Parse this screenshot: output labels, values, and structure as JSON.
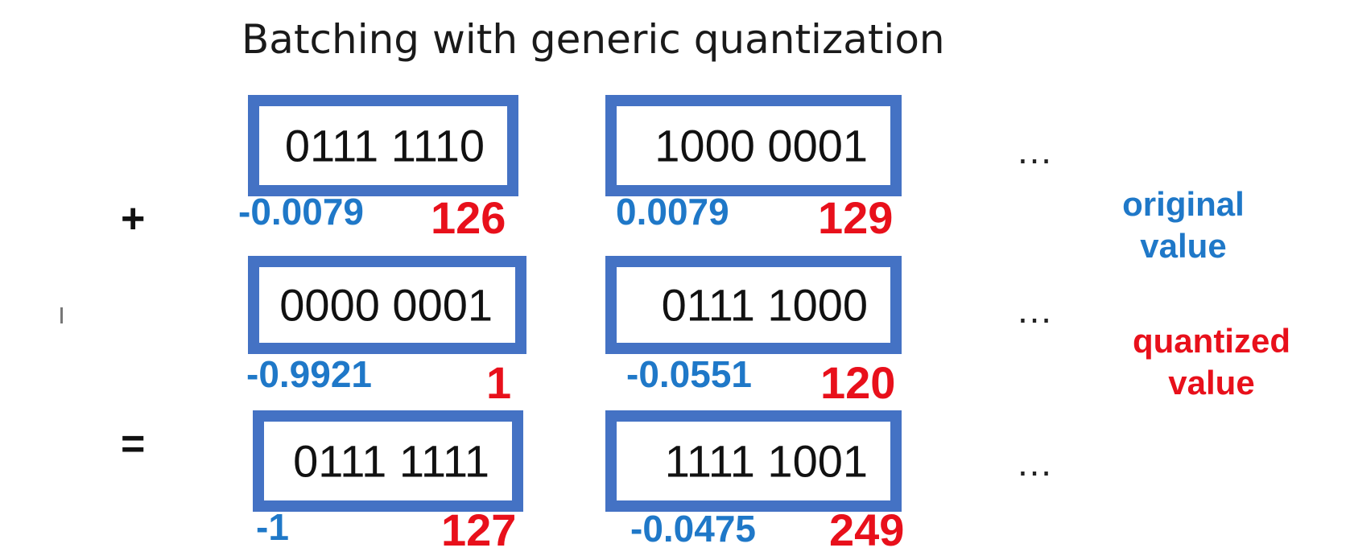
{
  "title": "Batching with generic quantization",
  "operators": {
    "plus": "+",
    "equals": "="
  },
  "ellipsis": "…",
  "rows": [
    {
      "cells": [
        {
          "bits": "0111 1110",
          "original": "-0.0079",
          "quantized": "126"
        },
        {
          "bits": "1000 0001",
          "original": "0.0079",
          "quantized": "129"
        }
      ]
    },
    {
      "cells": [
        {
          "bits": "0000 0001",
          "original": "-0.9921",
          "quantized": "1"
        },
        {
          "bits": "0111 1000",
          "original": "-0.0551",
          "quantized": "120"
        }
      ]
    },
    {
      "cells": [
        {
          "bits": "0111 1111",
          "original": "-1",
          "quantized": "127"
        },
        {
          "bits": "1111 1001",
          "original": "-0.0475",
          "quantized": "249"
        }
      ]
    }
  ],
  "legend": {
    "original_line1": "original",
    "original_line2": "value",
    "quantized_line1": "quantized",
    "quantized_line2": "value"
  },
  "colors": {
    "box_border": "#4472c4",
    "original_value": "#1f78c8",
    "quantized_value": "#e8101b"
  }
}
